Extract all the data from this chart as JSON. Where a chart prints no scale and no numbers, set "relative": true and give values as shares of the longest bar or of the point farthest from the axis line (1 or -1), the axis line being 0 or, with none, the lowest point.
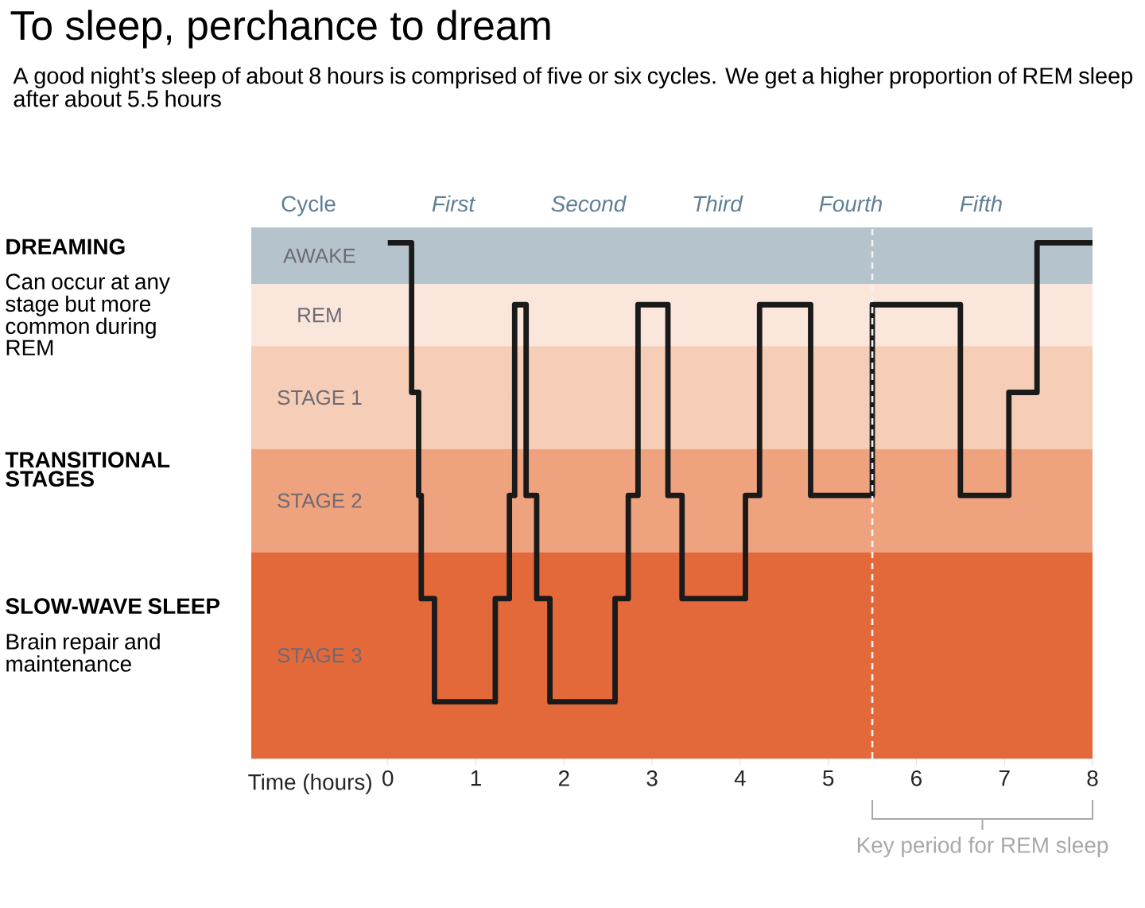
{
  "chart_data": {
    "type": "step",
    "title": "To sleep, perchance to dream",
    "subtitle": "A good night’s sleep of about 8 hours is comprised of five or six cycles. We get a higher proportion of REM sleep after about 5.5 hours",
    "xlabel": "Time (hours)",
    "relative": true,
    "x": [
      0,
      0.27,
      0.35,
      0.38,
      0.53,
      1.22,
      1.38,
      1.44,
      1.57,
      1.69,
      1.84,
      2.58,
      2.73,
      2.84,
      3.18,
      3.34,
      4.06,
      4.22,
      4.8,
      5.5,
      6.5,
      7.05,
      7.37,
      8
    ],
    "values": [
      1,
      0.71,
      0.51,
      0.31,
      0.11,
      0.31,
      0.51,
      0.88,
      0.51,
      0.31,
      0.11,
      0.31,
      0.51,
      0.88,
      0.51,
      0.31,
      0.51,
      0.88,
      0.51,
      0.88,
      0.51,
      0.71,
      1,
      1
    ],
    "color": "#1a1a1a",
    "xlim": [
      -1.55,
      8
    ],
    "xticks": [
      0,
      1,
      2,
      3,
      4,
      5,
      6,
      7,
      8
    ],
    "bands": [
      {
        "axis": "y",
        "from": 0.92,
        "to": 1.03,
        "label": "AWAKE",
        "color": "#b4c3cc"
      },
      {
        "axis": "y",
        "from": 0.8,
        "to": 0.92,
        "label": "REM",
        "color": "#fbe6dc"
      },
      {
        "axis": "y",
        "from": 0.6,
        "to": 0.8,
        "label": "STAGE 1",
        "color": "#f6cdb6"
      },
      {
        "axis": "y",
        "from": 0.4,
        "to": 0.6,
        "label": "STAGE 2",
        "color": "#eea27e"
      },
      {
        "axis": "y",
        "from": 0,
        "to": 0.4,
        "label": "STAGE 3",
        "color": "#e4693a"
      }
    ],
    "ref_lines": [
      {
        "axis": "x",
        "value": 5.5,
        "color": "#f2f2f2",
        "line_style": "dashed"
      }
    ],
    "annotations": [
      "Cycle",
      "First",
      "Second",
      "Third",
      "Fourth",
      "Fifth",
      "DREAMING",
      "Can occur at any stage but more common during REM",
      "TRANSITIONAL STAGES",
      "SLOW-WAVE SLEEP",
      "Brain repair and maintenance",
      "Key period for REM sleep"
    ]
  }
}
